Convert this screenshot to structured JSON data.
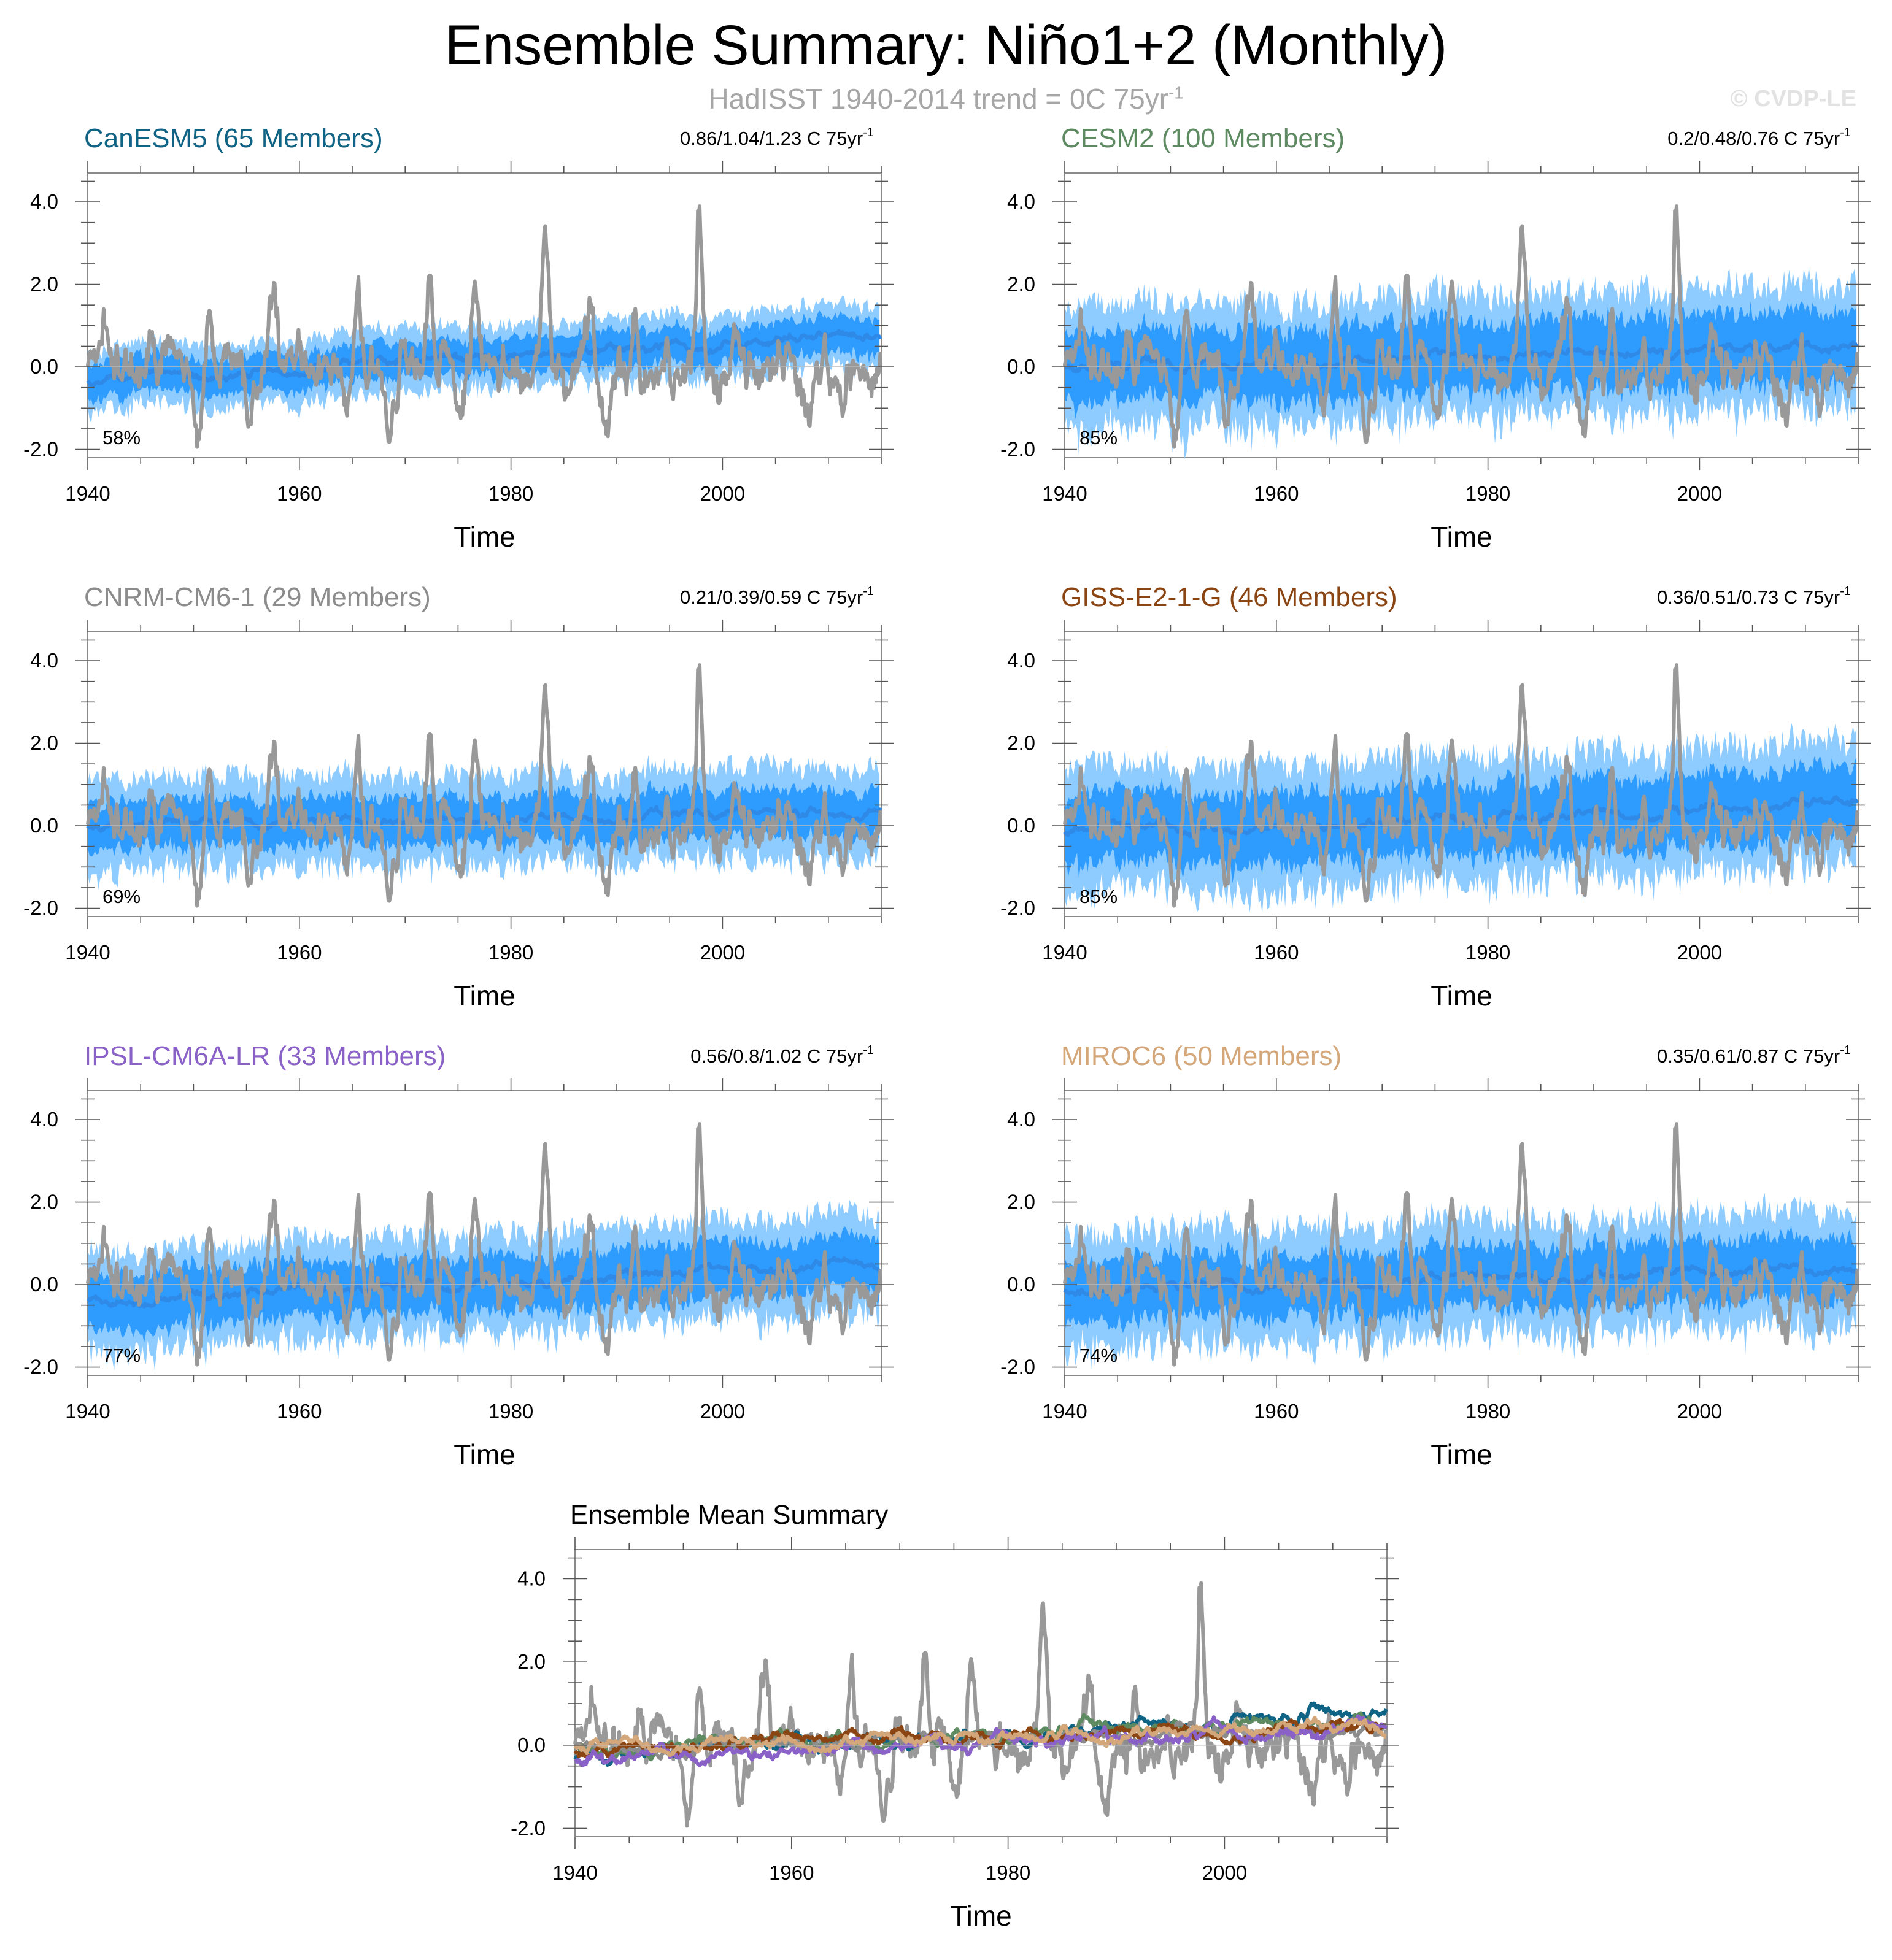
{
  "title": "Ensemble Summary: Niño1+2 (Monthly)",
  "subtitle": {
    "text": "HadISST 1940-2014 trend = 0C 75yr",
    "sup": "-1"
  },
  "copyright": "© CVDP-LE",
  "colors": {
    "observation": "#999999",
    "ensemble_mean": "#2e8ae6",
    "spread_inner": "#2e9bff",
    "spread_outer": "#8ecbff"
  },
  "chart_data": [
    {
      "type": "line",
      "title": "CanESM5 (65 Members)",
      "title_color": "#0f6384",
      "trend_label": "0.86/1.04/1.23 C 75yr",
      "trend_sup": "-1",
      "percent_label": "58%",
      "xlabel": "Time",
      "x_ticks": [
        "1940",
        "1960",
        "1980",
        "2000"
      ],
      "y_ticks": [
        "4.0",
        "2.0",
        "0.0",
        "-2.0"
      ],
      "xlim": [
        1940,
        2015
      ],
      "ylim": [
        -2.2,
        4.7
      ],
      "series": [
        {
          "name": "HadISST observations",
          "color": "#999999"
        },
        {
          "name": "Ensemble mean",
          "color": "#2e8ae6",
          "start": -0.3,
          "end": 0.75
        },
        {
          "name": "Ensemble spread",
          "inner_amplitude": 0.45,
          "outer_amplitude": 0.75
        }
      ]
    },
    {
      "type": "line",
      "title": "CESM2 (100 Members)",
      "title_color": "#5e8a62",
      "trend_label": "0.2/0.48/0.76 C 75yr",
      "trend_sup": "-1",
      "percent_label": "85%",
      "xlabel": "Time",
      "x_ticks": [
        "1940",
        "1960",
        "1980",
        "2000"
      ],
      "y_ticks": [
        "4.0",
        "2.0",
        "0.0",
        "-2.0"
      ],
      "xlim": [
        1940,
        2015
      ],
      "ylim": [
        -2.2,
        4.7
      ],
      "series": [
        {
          "name": "HadISST observations",
          "color": "#999999"
        },
        {
          "name": "Ensemble mean",
          "color": "#2e8ae6",
          "start": -0.05,
          "end": 0.55
        },
        {
          "name": "Ensemble spread",
          "inner_amplitude": 0.9,
          "outer_amplitude": 1.5
        }
      ]
    },
    {
      "type": "line",
      "title": "CNRM-CM6-1 (29 Members)",
      "title_color": "#8c8c8c",
      "trend_label": "0.21/0.39/0.59 C 75yr",
      "trend_sup": "-1",
      "percent_label": "69%",
      "xlabel": "Time",
      "x_ticks": [
        "1940",
        "1960",
        "1980",
        "2000"
      ],
      "y_ticks": [
        "4.0",
        "2.0",
        "0.0",
        "-2.0"
      ],
      "xlim": [
        1940,
        2015
      ],
      "ylim": [
        -2.2,
        4.7
      ],
      "series": [
        {
          "name": "HadISST observations",
          "color": "#999999"
        },
        {
          "name": "Ensemble mean",
          "color": "#2e8ae6",
          "start": -0.05,
          "end": 0.35
        },
        {
          "name": "Ensemble spread",
          "inner_amplitude": 0.6,
          "outer_amplitude": 1.1
        }
      ]
    },
    {
      "type": "line",
      "title": "GISS-E2-1-G (46 Members)",
      "title_color": "#8b4513",
      "trend_label": "0.36/0.51/0.73 C 75yr",
      "trend_sup": "-1",
      "percent_label": "85%",
      "xlabel": "Time",
      "x_ticks": [
        "1940",
        "1960",
        "1980",
        "2000"
      ],
      "y_ticks": [
        "4.0",
        "2.0",
        "0.0",
        "-2.0"
      ],
      "xlim": [
        1940,
        2015
      ],
      "ylim": [
        -2.2,
        4.7
      ],
      "series": [
        {
          "name": "HadISST observations",
          "color": "#999999"
        },
        {
          "name": "Ensemble mean",
          "color": "#2e8ae6",
          "start": -0.15,
          "end": 0.5
        },
        {
          "name": "Ensemble spread",
          "inner_amplitude": 0.9,
          "outer_amplitude": 1.5
        }
      ]
    },
    {
      "type": "line",
      "title": "IPSL-CM6A-LR (33 Members)",
      "title_color": "#8a62c7",
      "trend_label": "0.56/0.8/1.02 C 75yr",
      "trend_sup": "-1",
      "percent_label": "77%",
      "xlabel": "Time",
      "x_ticks": [
        "1940",
        "1960",
        "1980",
        "2000"
      ],
      "y_ticks": [
        "4.0",
        "2.0",
        "0.0",
        "-2.0"
      ],
      "xlim": [
        1940,
        2015
      ],
      "ylim": [
        -2.2,
        4.7
      ],
      "series": [
        {
          "name": "HadISST observations",
          "color": "#999999"
        },
        {
          "name": "Ensemble mean",
          "color": "#2e8ae6",
          "start": -0.4,
          "end": 0.5
        },
        {
          "name": "Ensemble spread",
          "inner_amplitude": 0.7,
          "outer_amplitude": 1.2
        }
      ]
    },
    {
      "type": "line",
      "title": "MIROC6 (50 Members)",
      "title_color": "#d4a77a",
      "trend_label": "0.35/0.61/0.87 C 75yr",
      "trend_sup": "-1",
      "percent_label": "74%",
      "xlabel": "Time",
      "x_ticks": [
        "1940",
        "1960",
        "1980",
        "2000"
      ],
      "y_ticks": [
        "4.0",
        "2.0",
        "0.0",
        "-2.0"
      ],
      "xlim": [
        1940,
        2015
      ],
      "ylim": [
        -2.2,
        4.7
      ],
      "series": [
        {
          "name": "HadISST observations",
          "color": "#999999"
        },
        {
          "name": "Ensemble mean",
          "color": "#2e8ae6",
          "start": -0.15,
          "end": 0.45
        },
        {
          "name": "Ensemble spread",
          "inner_amplitude": 0.8,
          "outer_amplitude": 1.4
        }
      ]
    },
    {
      "type": "line",
      "title": "Ensemble Mean Summary",
      "title_color": "#000000",
      "xlabel": "Time",
      "x_ticks": [
        "1940",
        "1960",
        "1980",
        "2000"
      ],
      "y_ticks": [
        "4.0",
        "2.0",
        "0.0",
        "-2.0"
      ],
      "xlim": [
        1940,
        2015
      ],
      "ylim": [
        -2.2,
        4.7
      ],
      "series": [
        {
          "name": "HadISST observations",
          "color": "#999999"
        },
        {
          "name": "CanESM5",
          "color": "#0f6384",
          "start": -0.3,
          "end": 0.75
        },
        {
          "name": "CESM2",
          "color": "#5e8a62",
          "start": -0.05,
          "end": 0.55
        },
        {
          "name": "CNRM-CM6-1",
          "color": "#8c8c8c",
          "start": -0.05,
          "end": 0.35
        },
        {
          "name": "GISS-E2-1-G",
          "color": "#8b4513",
          "start": -0.15,
          "end": 0.5
        },
        {
          "name": "IPSL-CM6A-LR",
          "color": "#8a62c7",
          "start": -0.4,
          "end": 0.5
        },
        {
          "name": "MIROC6",
          "color": "#d4a77a",
          "start": -0.15,
          "end": 0.45
        }
      ]
    }
  ]
}
